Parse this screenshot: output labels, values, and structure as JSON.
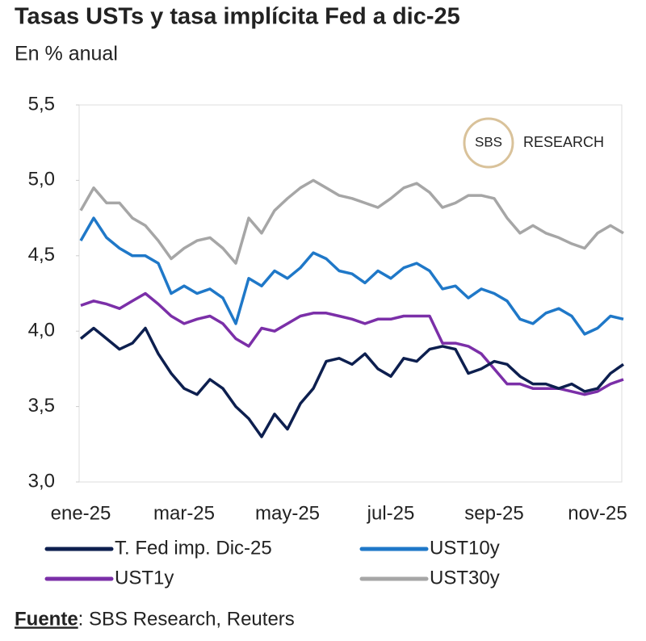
{
  "chart_data": {
    "type": "line",
    "title": "Tasas USTs y tasa implícita Fed a dic-25",
    "subtitle": "En % anual",
    "watermark": [
      "SBS",
      "RESEARCH"
    ],
    "source_label": "Fuente",
    "source_text": ": SBS Research, Reuters",
    "categories": [
      "ene-25",
      null,
      null,
      null,
      null,
      null,
      null,
      null,
      "mar-25",
      null,
      null,
      null,
      null,
      null,
      null,
      null,
      "may-25",
      null,
      null,
      null,
      null,
      null,
      null,
      null,
      "jul-25",
      null,
      null,
      null,
      null,
      null,
      null,
      null,
      "sep-25",
      null,
      null,
      null,
      null,
      null,
      null,
      null,
      "nov-25",
      null,
      null
    ],
    "ylim": [
      3.0,
      5.5
    ],
    "yticks": [
      {
        "value": 3.0,
        "label": "3,0"
      },
      {
        "value": 3.5,
        "label": "3,5"
      },
      {
        "value": 4.0,
        "label": "4,0"
      },
      {
        "value": 4.5,
        "label": "4,5"
      },
      {
        "value": 5.0,
        "label": "5,0"
      },
      {
        "value": 5.5,
        "label": "5,5"
      }
    ],
    "grid": false,
    "series": [
      {
        "name": "T. Fed imp. Dic-25",
        "color": "#0d1f4f",
        "values": [
          3.95,
          4.02,
          3.95,
          3.88,
          3.92,
          4.02,
          3.85,
          3.72,
          3.62,
          3.58,
          3.68,
          3.62,
          3.5,
          3.42,
          3.3,
          3.45,
          3.35,
          3.52,
          3.62,
          3.8,
          3.82,
          3.78,
          3.85,
          3.75,
          3.7,
          3.82,
          3.8,
          3.88,
          3.9,
          3.88,
          3.72,
          3.75,
          3.8,
          3.78,
          3.7,
          3.65,
          3.65,
          3.62,
          3.65,
          3.6,
          3.62,
          3.72,
          3.78
        ]
      },
      {
        "name": "UST10y",
        "color": "#1f78c8",
        "values": [
          4.6,
          4.75,
          4.62,
          4.55,
          4.5,
          4.5,
          4.45,
          4.25,
          4.3,
          4.25,
          4.28,
          4.22,
          4.05,
          4.35,
          4.3,
          4.4,
          4.35,
          4.42,
          4.52,
          4.48,
          4.4,
          4.38,
          4.32,
          4.4,
          4.35,
          4.42,
          4.45,
          4.4,
          4.28,
          4.3,
          4.22,
          4.28,
          4.25,
          4.2,
          4.08,
          4.05,
          4.12,
          4.15,
          4.1,
          3.98,
          4.02,
          4.1,
          4.08
        ]
      },
      {
        "name": "UST1y",
        "color": "#7b2fa8",
        "values": [
          4.17,
          4.2,
          4.18,
          4.15,
          4.2,
          4.25,
          4.18,
          4.1,
          4.05,
          4.08,
          4.1,
          4.05,
          3.95,
          3.9,
          4.02,
          4.0,
          4.05,
          4.1,
          4.12,
          4.12,
          4.1,
          4.08,
          4.05,
          4.08,
          4.08,
          4.1,
          4.1,
          4.1,
          3.92,
          3.92,
          3.9,
          3.85,
          3.75,
          3.65,
          3.65,
          3.62,
          3.62,
          3.62,
          3.6,
          3.58,
          3.6,
          3.65,
          3.68
        ]
      },
      {
        "name": "UST30y",
        "color": "#a6a6a6",
        "values": [
          4.8,
          4.95,
          4.85,
          4.85,
          4.75,
          4.7,
          4.6,
          4.48,
          4.55,
          4.6,
          4.62,
          4.55,
          4.45,
          4.75,
          4.65,
          4.8,
          4.88,
          4.95,
          5.0,
          4.95,
          4.9,
          4.88,
          4.85,
          4.82,
          4.88,
          4.95,
          4.98,
          4.92,
          4.82,
          4.85,
          4.9,
          4.9,
          4.88,
          4.75,
          4.65,
          4.7,
          4.65,
          4.62,
          4.58,
          4.55,
          4.65,
          4.7,
          4.65
        ]
      }
    ]
  }
}
